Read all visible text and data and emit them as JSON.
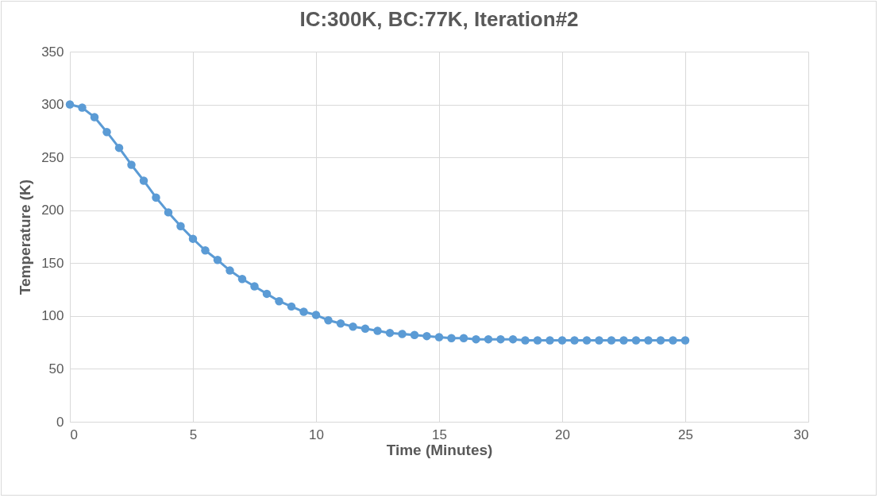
{
  "chart_data": {
    "type": "line",
    "title": "IC:300K, BC:77K, Iteration#2",
    "xlabel": "Time (Minutes)",
    "ylabel": "Temperature (K)",
    "x": [
      0,
      0.5,
      1,
      1.5,
      2,
      2.5,
      3,
      3.5,
      4,
      4.5,
      5,
      5.5,
      6,
      6.5,
      7,
      7.5,
      8,
      8.5,
      9,
      9.5,
      10,
      10.5,
      11,
      11.5,
      12,
      12.5,
      13,
      13.5,
      14,
      14.5,
      15,
      15.5,
      16,
      16.5,
      17,
      17.5,
      18,
      18.5,
      19,
      19.5,
      20,
      20.5,
      21,
      21.5,
      22,
      22.5,
      23,
      23.5,
      24,
      24.5,
      25
    ],
    "series": [
      {
        "color": "#5b9bd5",
        "values": [
          300,
          297,
          288,
          274,
          259,
          243,
          228,
          212,
          198,
          185,
          173,
          162,
          153,
          143,
          135,
          128,
          121,
          114,
          109,
          104,
          101,
          96,
          93,
          90,
          88,
          86,
          84,
          83,
          82,
          81,
          80,
          79,
          79,
          78,
          78,
          78,
          78,
          77,
          77,
          77,
          77,
          77,
          77,
          77,
          77,
          77,
          77,
          77,
          77,
          77,
          77
        ]
      }
    ],
    "xlim": [
      0,
      30
    ],
    "xticks": [
      0,
      5,
      10,
      15,
      20,
      25,
      30
    ],
    "ylim": [
      0,
      350
    ],
    "yticks": [
      0,
      50,
      100,
      150,
      200,
      250,
      300,
      350
    ],
    "grid": true,
    "marker": "circle",
    "line_style": "solid"
  }
}
